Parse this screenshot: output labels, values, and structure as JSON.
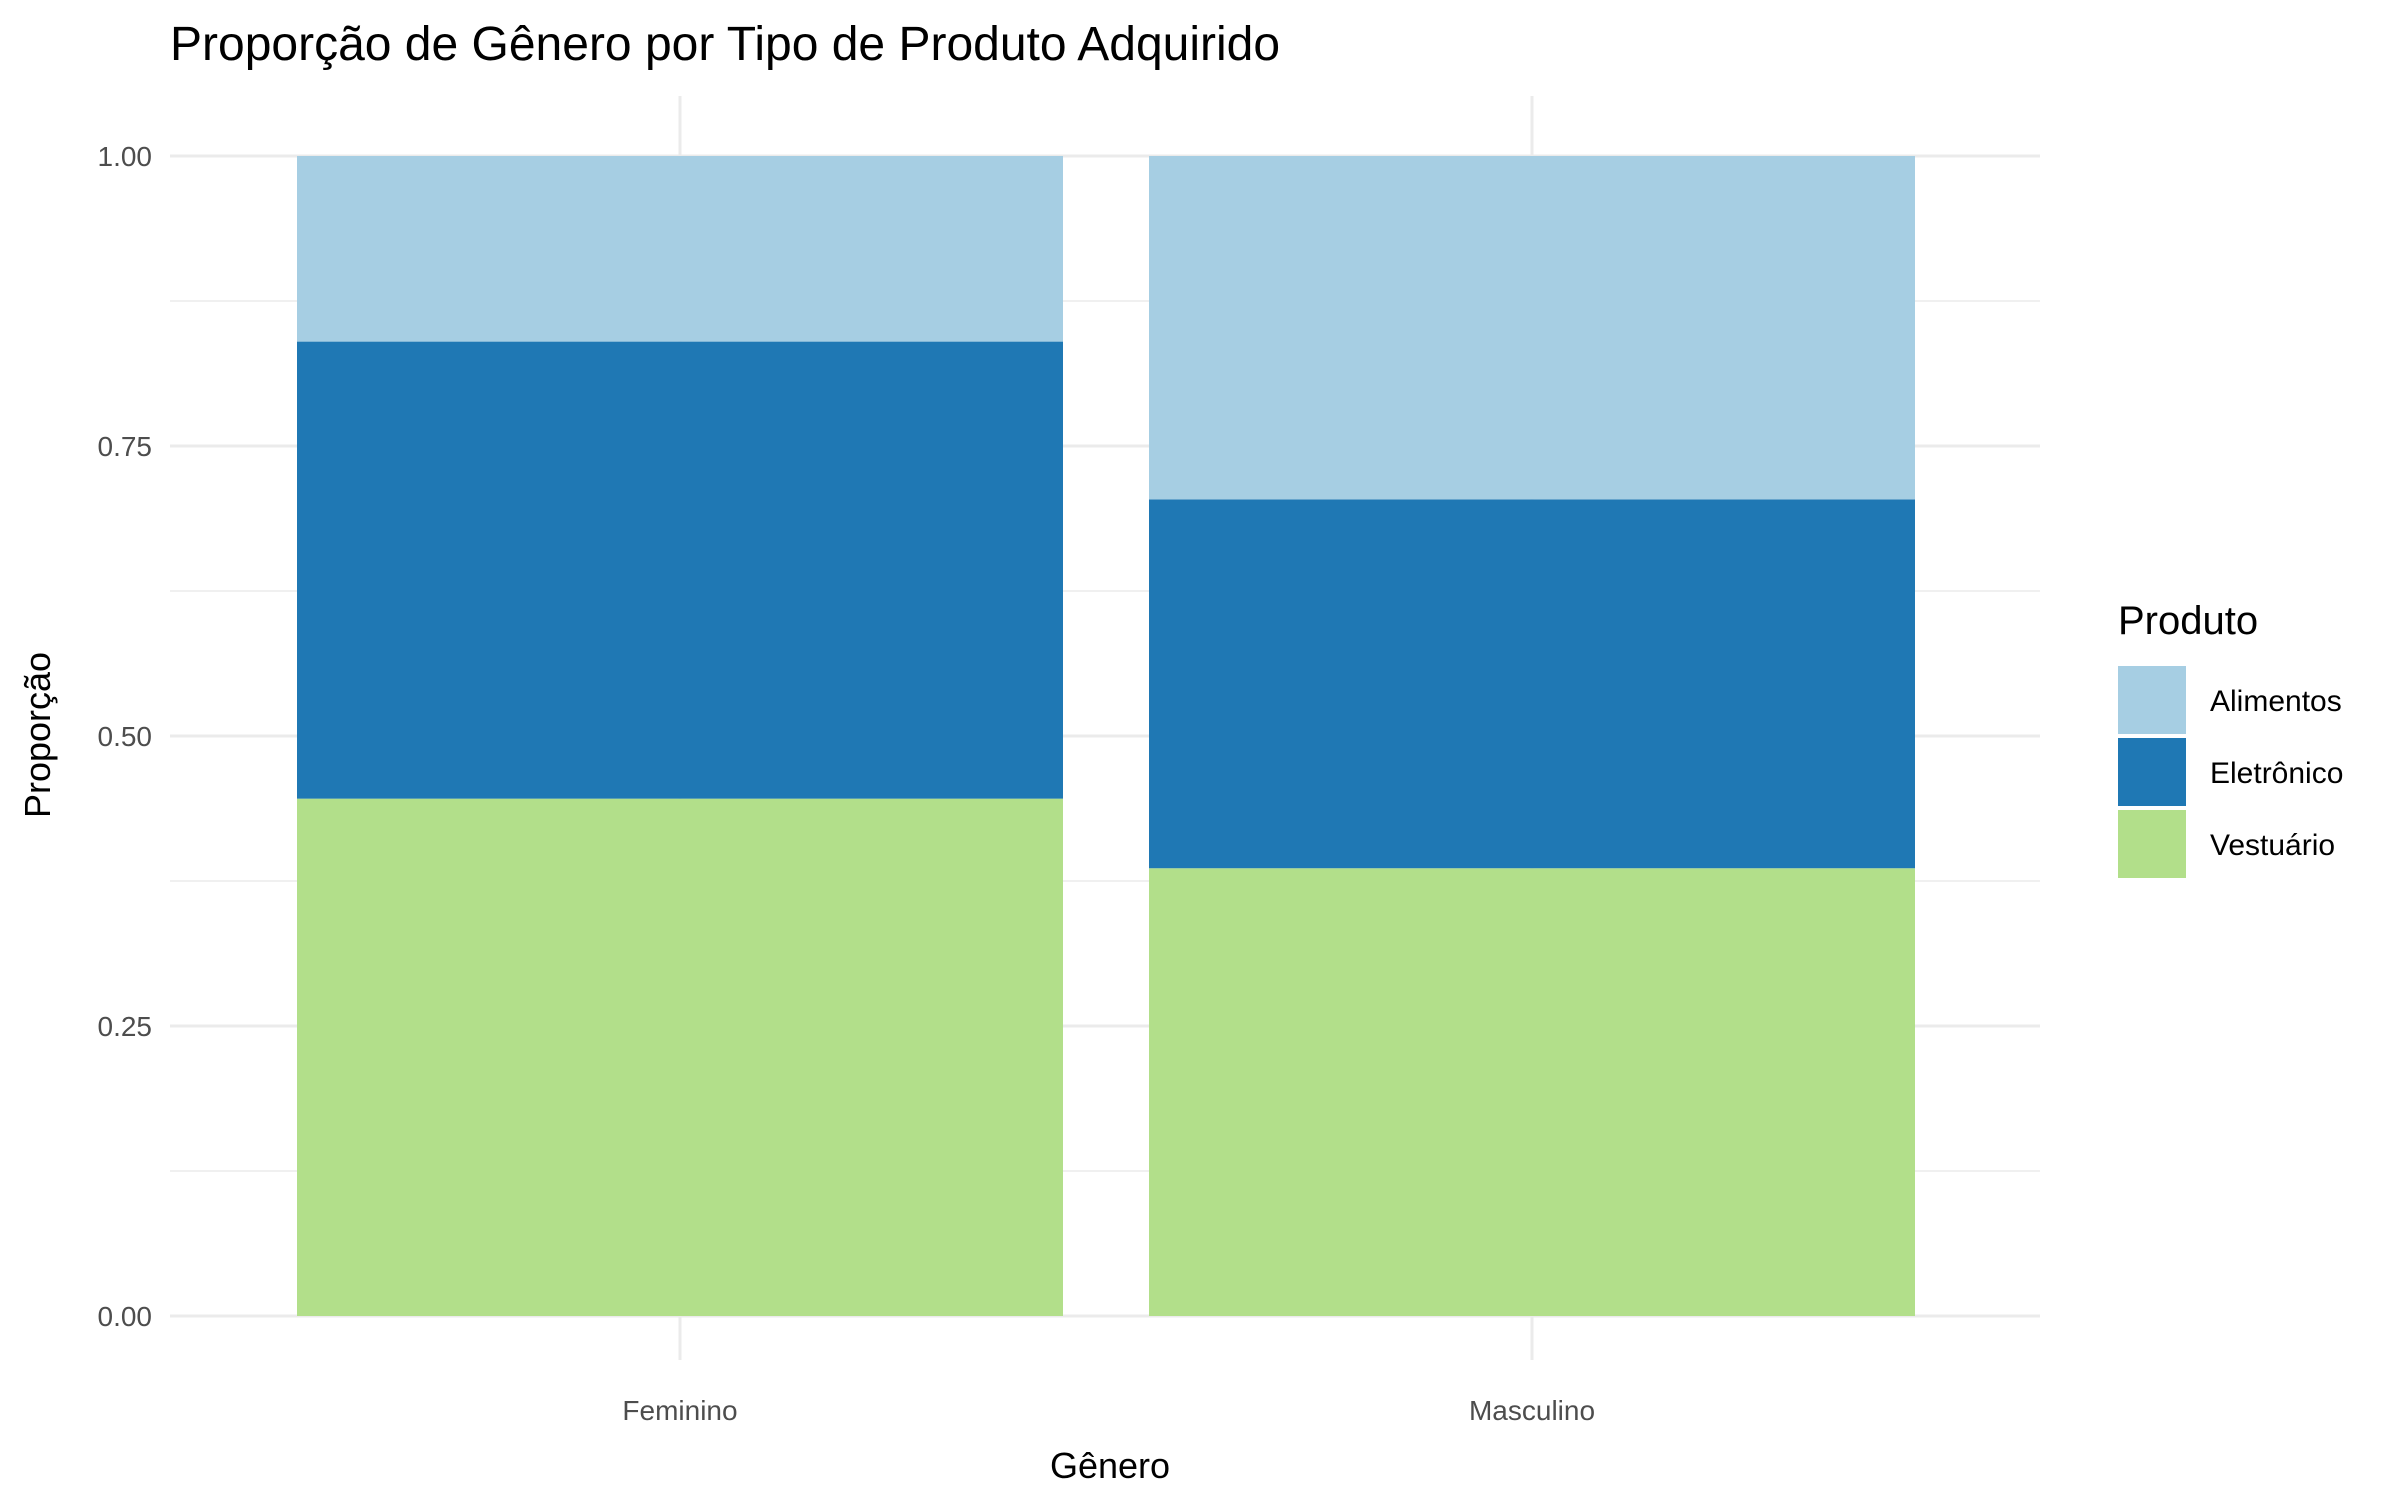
{
  "chart_data": {
    "type": "bar",
    "stacked": true,
    "title": "Proporção de Gênero por Tipo de Produto Adquirido",
    "xlabel": "Gênero",
    "ylabel": "Proporção",
    "categories": [
      "Feminino",
      "Masculino"
    ],
    "ylim": [
      0,
      1
    ],
    "yticks": [
      "0.00",
      "0.25",
      "0.50",
      "0.75",
      "1.00"
    ],
    "grid": true,
    "legend": {
      "title": "Produto",
      "position": "right"
    },
    "series": [
      {
        "name": "Vestuário",
        "color": "#b2df8a",
        "values": [
          0.446,
          0.386
        ]
      },
      {
        "name": "Eletrônico",
        "color": "#1f78b4",
        "values": [
          0.394,
          0.318
        ]
      },
      {
        "name": "Alimentos",
        "color": "#a6cee3",
        "values": [
          0.16,
          0.296
        ]
      }
    ],
    "legend_order": [
      "Alimentos",
      "Eletrônico",
      "Vestuário"
    ]
  }
}
